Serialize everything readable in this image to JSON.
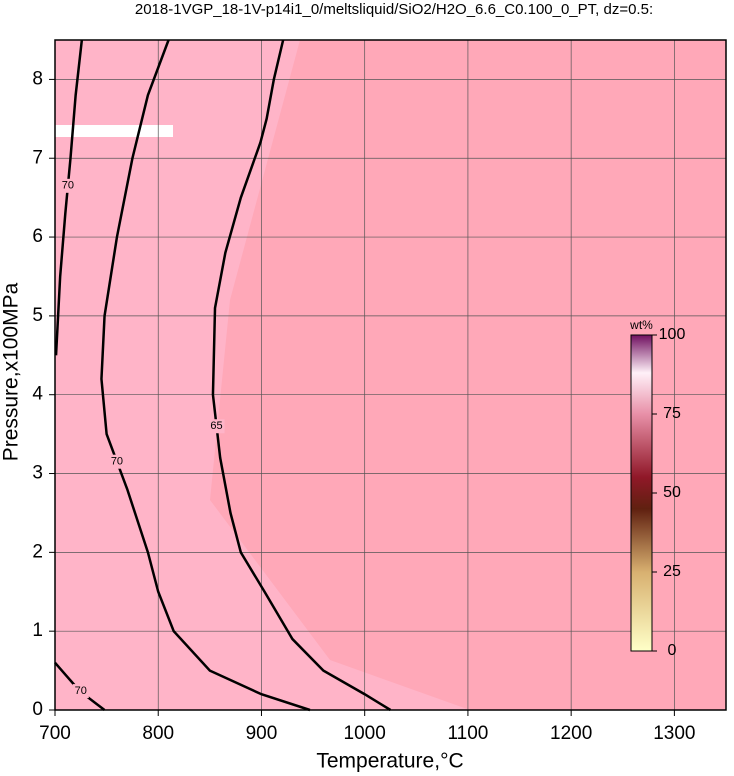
{
  "chart_data": {
    "type": "contour",
    "title": "2018-1VGP_18-1V-p14i1_0/meltsliquid/SiO2/H2O_6.6_C0.100_0_PT, dz=0.5:",
    "x_label": "Temperature,°C",
    "y_label": "Pressure,x100MPa",
    "xlim": [
      700,
      1350
    ],
    "ylim": [
      0,
      8.5
    ],
    "xticks": [
      700,
      800,
      900,
      1000,
      1100,
      1200,
      1300
    ],
    "yticks": [
      0,
      1,
      2,
      3,
      4,
      5,
      6,
      7,
      8
    ],
    "grid": true,
    "contours": [
      {
        "level": 70,
        "x": [
          947,
          900,
          850,
          815,
          800,
          790,
          770,
          750,
          745,
          748,
          760,
          775,
          790,
          810
        ],
        "y": [
          0,
          0.2,
          0.5,
          1,
          1.5,
          2,
          2.8,
          3.5,
          4.2,
          5,
          6,
          7,
          7.8,
          8.5
        ]
      },
      {
        "level": 65,
        "x": [
          1025,
          1000,
          960,
          930,
          903,
          880,
          870,
          860,
          853,
          855,
          865,
          880,
          899,
          905,
          912,
          921
        ],
        "y": [
          0,
          0.2,
          0.5,
          0.9,
          1.5,
          2,
          2.5,
          3.2,
          4,
          5.1,
          5.8,
          6.5,
          7.2,
          7.5,
          8,
          8.5
        ]
      },
      {
        "level": 70,
        "x": [
          701,
          705,
          710,
          715,
          720,
          726
        ],
        "y": [
          4.5,
          5.5,
          6.3,
          7,
          7.8,
          8.5
        ]
      },
      {
        "level": 70,
        "x": [
          700,
          710,
          720,
          730,
          740,
          748
        ],
        "y": [
          0.6,
          0.45,
          0.3,
          0.18,
          0.08,
          0
        ]
      }
    ],
    "colorbar": {
      "label": "wt%",
      "lim": [
        0,
        100
      ],
      "ticks": [
        0,
        25,
        50,
        75,
        100
      ]
    }
  }
}
